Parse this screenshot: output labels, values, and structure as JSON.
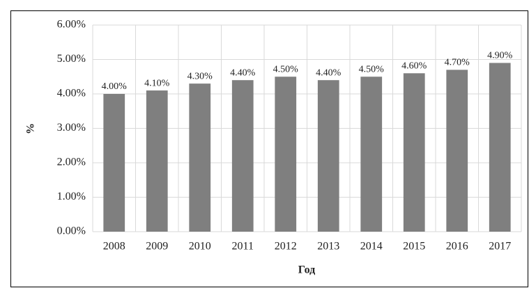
{
  "chart_data": {
    "type": "bar",
    "categories": [
      "2008",
      "2009",
      "2010",
      "2011",
      "2012",
      "2013",
      "2014",
      "2015",
      "2016",
      "2017"
    ],
    "values": [
      4.0,
      4.1,
      4.3,
      4.4,
      4.5,
      4.4,
      4.5,
      4.6,
      4.7,
      4.9
    ],
    "value_labels": [
      "4.00%",
      "4.10%",
      "4.30%",
      "4.40%",
      "4.50%",
      "4.40%",
      "4.50%",
      "4.60%",
      "4.70%",
      "4.90%"
    ],
    "color": "#7f7f7f",
    "x_label": "Год",
    "y_label": "%",
    "ylim": [
      0,
      6
    ],
    "yticks": [
      {
        "value": 0,
        "label": "0.00%"
      },
      {
        "value": 1,
        "label": "1.00%"
      },
      {
        "value": 2,
        "label": "2.00%"
      },
      {
        "value": 3,
        "label": "3.00%"
      },
      {
        "value": 4,
        "label": "4.00%"
      },
      {
        "value": 5,
        "label": "5.00%"
      },
      {
        "value": 6,
        "label": "6.00%"
      }
    ],
    "grid": true
  }
}
